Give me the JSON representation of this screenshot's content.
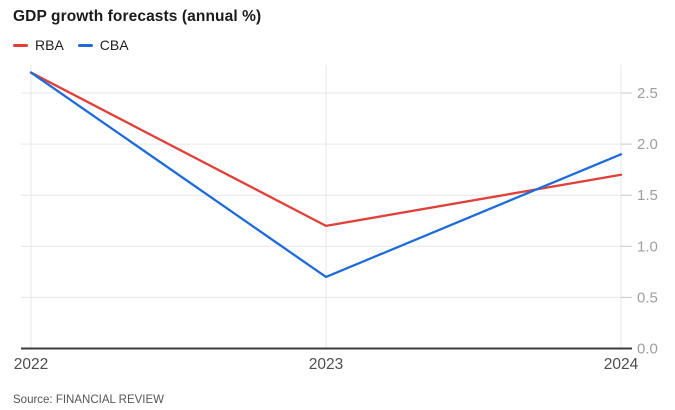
{
  "title": "GDP growth forecasts (annual %)",
  "source": "Source: FINANCIAL REVIEW",
  "legend": [
    {
      "label": "RBA",
      "color": "#e0403a"
    },
    {
      "label": "CBA",
      "color": "#1f6cd9"
    }
  ],
  "colors": {
    "rba_line": "#e0403a",
    "cba_line": "#1f6cd9",
    "axis": "#3c3c3c",
    "gridline": "#e7e7e7",
    "y_tick_label": "#9e9e9e",
    "x_tick_label": "#4d4d4d",
    "tick_mark": "#c9c9c9",
    "background": "#ffffff"
  },
  "chart_data": {
    "type": "line",
    "title": "GDP growth forecasts (annual %)",
    "x": [
      2022,
      2023,
      2024
    ],
    "xtick_labels": [
      "2022",
      "2023",
      "2024"
    ],
    "series": [
      {
        "name": "RBA",
        "color": "#e0403a",
        "values": [
          2.7,
          1.2,
          1.7
        ]
      },
      {
        "name": "CBA",
        "color": "#1f6cd9",
        "values": [
          2.7,
          0.7,
          1.9
        ]
      }
    ],
    "xlabel": "",
    "ylabel": "",
    "ylim": [
      0,
      2.79
    ],
    "yticks": [
      0.0,
      0.5,
      1.0,
      1.5,
      2.0,
      2.5
    ],
    "ytick_labels": [
      "0.0",
      "0.5",
      "1.0",
      "1.5",
      "2.0",
      "2.5"
    ],
    "grid": true,
    "y_axis_side": "right",
    "legend_position": "top-left"
  }
}
